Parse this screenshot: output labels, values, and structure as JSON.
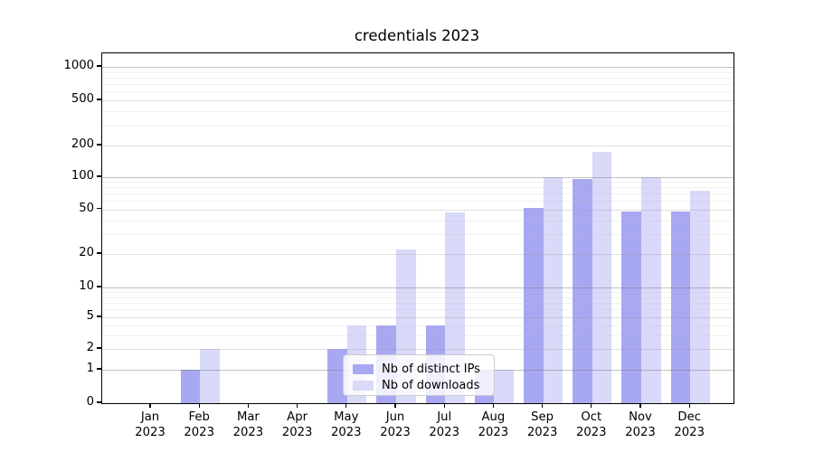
{
  "chart_data": {
    "type": "bar",
    "title": "credentials 2023",
    "categories": [
      "Jan",
      "Feb",
      "Mar",
      "Apr",
      "May",
      "Jun",
      "Jul",
      "Aug",
      "Sep",
      "Oct",
      "Nov",
      "Dec"
    ],
    "category_year_label": "2023",
    "series": [
      {
        "name": "Nb of distinct IPs",
        "color": "#a8a8f2",
        "values": [
          0,
          1,
          0,
          0,
          2,
          4,
          4,
          1,
          52,
          96,
          48,
          48
        ]
      },
      {
        "name": "Nb of downloads",
        "color": "#d9d9f9",
        "values": [
          0,
          2,
          0,
          0,
          4,
          22,
          47,
          1,
          100,
          175,
          100,
          75
        ]
      }
    ],
    "y_ticks": [
      0,
      1,
      2,
      5,
      10,
      20,
      50,
      100,
      200,
      500,
      1000
    ],
    "y_scale": "symlog",
    "ylim": [
      0,
      1200
    ],
    "xlabel": "",
    "ylabel": "",
    "grid": "horizontal major and minor",
    "legend_position": "lower center"
  },
  "colors": {
    "grid_decade": "rgba(110,110,110,0.42)",
    "grid_labeled": "rgba(150,150,150,0.30)",
    "grid_minor": "rgba(190,190,190,0.22)",
    "axis": "#000000",
    "background": "#ffffff"
  }
}
